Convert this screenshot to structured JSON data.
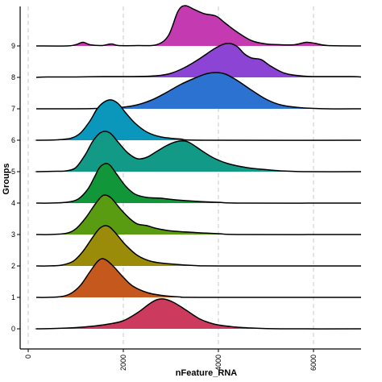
{
  "chart_data": {
    "type": "ridgeline",
    "title": "",
    "xlabel": "nFeature_RNA",
    "ylabel": "Groups",
    "xlim": [
      -200,
      7000
    ],
    "x_ticks": [
      0,
      2000,
      4000,
      6000
    ],
    "x_tick_labels": [
      "0",
      "2000",
      "4000",
      "6000"
    ],
    "grid": "vertical dashed",
    "legend": "none",
    "groups": [
      {
        "label": "0",
        "color": "#cc3a5e",
        "points": [
          [
            200,
            0.0
          ],
          [
            600,
            0.01
          ],
          [
            1000,
            0.03
          ],
          [
            1400,
            0.07
          ],
          [
            1700,
            0.12
          ],
          [
            2000,
            0.2
          ],
          [
            2300,
            0.4
          ],
          [
            2550,
            0.62
          ],
          [
            2700,
            0.72
          ],
          [
            2850,
            0.74
          ],
          [
            3050,
            0.66
          ],
          [
            3300,
            0.48
          ],
          [
            3600,
            0.25
          ],
          [
            3900,
            0.12
          ],
          [
            4300,
            0.05
          ],
          [
            4700,
            0.02
          ],
          [
            5300,
            0.0
          ],
          [
            7000,
            0.0
          ]
        ]
      },
      {
        "label": "1",
        "color": "#c4581d",
        "points": [
          [
            400,
            0.0
          ],
          [
            700,
            0.02
          ],
          [
            900,
            0.1
          ],
          [
            1100,
            0.3
          ],
          [
            1300,
            0.64
          ],
          [
            1450,
            0.88
          ],
          [
            1550,
            0.96
          ],
          [
            1650,
            0.92
          ],
          [
            1800,
            0.76
          ],
          [
            2000,
            0.5
          ],
          [
            2200,
            0.28
          ],
          [
            2500,
            0.12
          ],
          [
            2800,
            0.05
          ],
          [
            3200,
            0.01
          ],
          [
            3600,
            0.0
          ],
          [
            7000,
            0.0
          ]
        ]
      },
      {
        "label": "2",
        "color": "#9a8b09",
        "points": [
          [
            400,
            0.0
          ],
          [
            700,
            0.02
          ],
          [
            950,
            0.12
          ],
          [
            1150,
            0.36
          ],
          [
            1350,
            0.7
          ],
          [
            1500,
            0.93
          ],
          [
            1620,
            1.0
          ],
          [
            1720,
            0.96
          ],
          [
            1850,
            0.8
          ],
          [
            2050,
            0.52
          ],
          [
            2300,
            0.26
          ],
          [
            2600,
            0.11
          ],
          [
            3000,
            0.05
          ],
          [
            3500,
            0.01
          ],
          [
            4000,
            0.0
          ],
          [
            7000,
            0.0
          ]
        ]
      },
      {
        "label": "3",
        "color": "#599c12",
        "points": [
          [
            450,
            0.0
          ],
          [
            800,
            0.03
          ],
          [
            1000,
            0.14
          ],
          [
            1200,
            0.4
          ],
          [
            1400,
            0.74
          ],
          [
            1530,
            0.93
          ],
          [
            1620,
            0.98
          ],
          [
            1750,
            0.9
          ],
          [
            1950,
            0.62
          ],
          [
            2150,
            0.38
          ],
          [
            2300,
            0.26
          ],
          [
            2500,
            0.22
          ],
          [
            2700,
            0.15
          ],
          [
            3000,
            0.09
          ],
          [
            3500,
            0.05
          ],
          [
            4000,
            0.02
          ],
          [
            4500,
            0.0
          ],
          [
            7000,
            0.0
          ]
        ]
      },
      {
        "label": "4",
        "color": "#11963a",
        "points": [
          [
            450,
            0.0
          ],
          [
            800,
            0.02
          ],
          [
            1050,
            0.1
          ],
          [
            1250,
            0.34
          ],
          [
            1400,
            0.66
          ],
          [
            1500,
            0.88
          ],
          [
            1620,
            0.98
          ],
          [
            1720,
            0.94
          ],
          [
            1860,
            0.72
          ],
          [
            2050,
            0.42
          ],
          [
            2250,
            0.22
          ],
          [
            2500,
            0.14
          ],
          [
            2800,
            0.12
          ],
          [
            3100,
            0.08
          ],
          [
            3600,
            0.04
          ],
          [
            4000,
            0.02
          ],
          [
            4500,
            0.0
          ],
          [
            7000,
            0.0
          ]
        ]
      },
      {
        "label": "5",
        "color": "#139a86",
        "points": [
          [
            200,
            0.0
          ],
          [
            600,
            0.01
          ],
          [
            800,
            0.02
          ],
          [
            1000,
            0.1
          ],
          [
            1200,
            0.42
          ],
          [
            1350,
            0.74
          ],
          [
            1500,
            0.95
          ],
          [
            1620,
            1.0
          ],
          [
            1740,
            0.94
          ],
          [
            1900,
            0.72
          ],
          [
            2100,
            0.46
          ],
          [
            2300,
            0.32
          ],
          [
            2500,
            0.36
          ],
          [
            2700,
            0.5
          ],
          [
            2900,
            0.64
          ],
          [
            3100,
            0.74
          ],
          [
            3300,
            0.76
          ],
          [
            3450,
            0.68
          ],
          [
            3650,
            0.52
          ],
          [
            3900,
            0.34
          ],
          [
            4200,
            0.2
          ],
          [
            4600,
            0.1
          ],
          [
            5000,
            0.05
          ],
          [
            5300,
            0.02
          ],
          [
            5800,
            0.0
          ],
          [
            7000,
            0.0
          ]
        ]
      },
      {
        "label": "6",
        "color": "#0a97bb",
        "points": [
          [
            200,
            0.0
          ],
          [
            600,
            0.01
          ],
          [
            900,
            0.05
          ],
          [
            1100,
            0.18
          ],
          [
            1300,
            0.48
          ],
          [
            1450,
            0.78
          ],
          [
            1600,
            0.95
          ],
          [
            1750,
            1.0
          ],
          [
            1900,
            0.9
          ],
          [
            2050,
            0.68
          ],
          [
            2250,
            0.42
          ],
          [
            2500,
            0.2
          ],
          [
            2800,
            0.08
          ],
          [
            3200,
            0.03
          ],
          [
            3700,
            0.0
          ],
          [
            7000,
            0.0
          ]
        ]
      },
      {
        "label": "7",
        "color": "#2c72d0",
        "points": [
          [
            1000,
            0.0
          ],
          [
            1500,
            0.01
          ],
          [
            2000,
            0.04
          ],
          [
            2300,
            0.1
          ],
          [
            2600,
            0.22
          ],
          [
            2900,
            0.4
          ],
          [
            3200,
            0.6
          ],
          [
            3500,
            0.76
          ],
          [
            3750,
            0.87
          ],
          [
            3950,
            0.9
          ],
          [
            4150,
            0.86
          ],
          [
            4400,
            0.7
          ],
          [
            4700,
            0.46
          ],
          [
            5000,
            0.24
          ],
          [
            5300,
            0.1
          ],
          [
            5700,
            0.03
          ],
          [
            6300,
            0.0
          ],
          [
            7000,
            0.0
          ]
        ]
      },
      {
        "label": "8",
        "color": "#8b44d4",
        "points": [
          [
            100,
            0.0
          ],
          [
            400,
            0.01
          ],
          [
            1000,
            0.01
          ],
          [
            1600,
            0.02
          ],
          [
            2200,
            0.02
          ],
          [
            2700,
            0.04
          ],
          [
            3000,
            0.1
          ],
          [
            3300,
            0.25
          ],
          [
            3600,
            0.46
          ],
          [
            3900,
            0.7
          ],
          [
            4100,
            0.82
          ],
          [
            4250,
            0.84
          ],
          [
            4400,
            0.76
          ],
          [
            4550,
            0.58
          ],
          [
            4700,
            0.48
          ],
          [
            4900,
            0.44
          ],
          [
            5100,
            0.28
          ],
          [
            5400,
            0.1
          ],
          [
            5800,
            0.03
          ],
          [
            6300,
            0.02
          ],
          [
            6800,
            0.02
          ],
          [
            7000,
            0.01
          ]
        ]
      },
      {
        "label": "9",
        "color": "#c43bb1",
        "points": [
          [
            100,
            0.0
          ],
          [
            800,
            0.0
          ],
          [
            1000,
            0.03
          ],
          [
            1150,
            0.09
          ],
          [
            1300,
            0.03
          ],
          [
            1550,
            0.01
          ],
          [
            1750,
            0.05
          ],
          [
            1900,
            0.01
          ],
          [
            2300,
            0.01
          ],
          [
            2700,
            0.03
          ],
          [
            2950,
            0.26
          ],
          [
            3150,
            0.86
          ],
          [
            3300,
            1.0
          ],
          [
            3500,
            0.9
          ],
          [
            3700,
            0.8
          ],
          [
            3950,
            0.74
          ],
          [
            4150,
            0.56
          ],
          [
            4400,
            0.34
          ],
          [
            4700,
            0.13
          ],
          [
            5000,
            0.05
          ],
          [
            5300,
            0.03
          ],
          [
            5600,
            0.03
          ],
          [
            5850,
            0.09
          ],
          [
            6050,
            0.06
          ],
          [
            6300,
            0.01
          ],
          [
            7000,
            0.0
          ]
        ]
      }
    ]
  }
}
